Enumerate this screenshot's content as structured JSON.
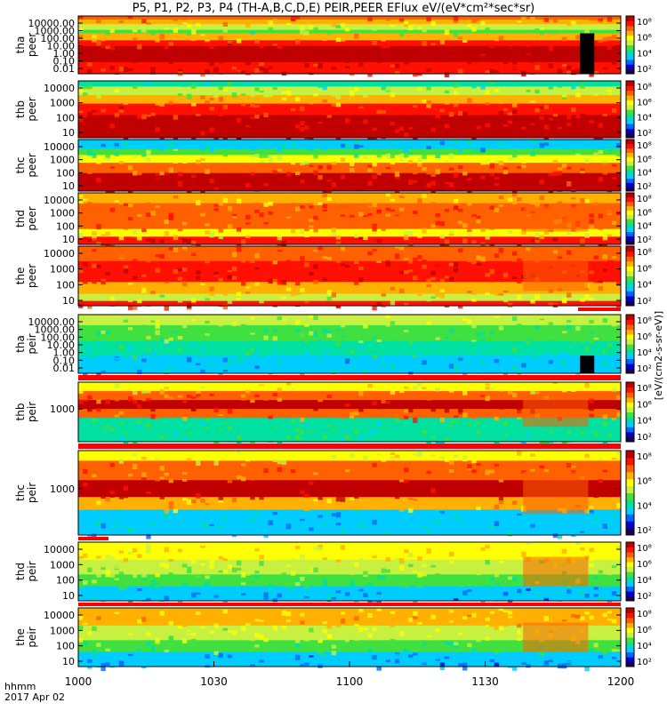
{
  "title": "P5, P1, P2, P3, P4 (TH-A,B,C,D,E) PEIR,PEER EFlux eV/(eV*cm²*sec*sr)",
  "colorbar_label": "[eV/(cm2-s-sr-eV)]",
  "x_axis": {
    "ticks": [
      "1000",
      "1030",
      "1100",
      "1130",
      "1200"
    ],
    "stack_label_line1": "hhmm",
    "stack_label_line2": "2017 Apr 02"
  },
  "colorbar_ticks": [
    "10²",
    "10⁴",
    "10⁶",
    "10⁸"
  ],
  "colors": {
    "ramp": [
      "#1a0050",
      "#0000d0",
      "#0066ff",
      "#00ccff",
      "#00e0a0",
      "#40e040",
      "#c8f040",
      "#ffff00",
      "#ffb000",
      "#ff6000",
      "#ff1000",
      "#c00000"
    ],
    "quality_bar": "#ff0000",
    "background": "#ffffff"
  },
  "chart_data": {
    "type": "heatmap",
    "time_range": [
      "1000",
      "1200"
    ],
    "colorscale": "log",
    "colorbar_range": [
      "10²",
      "10⁸"
    ],
    "panels": [
      {
        "probe": "tha",
        "species": "peer",
        "ylabel": [
          "tha",
          "peer"
        ],
        "yticks": [
          "10000.00",
          "1000.00",
          "100.00",
          "10.00",
          "1.00",
          "0.10",
          "0.01"
        ]
      },
      {
        "probe": "thb",
        "species": "peer",
        "ylabel": [
          "thb",
          "peer"
        ],
        "yticks": [
          "10000",
          "1000",
          "100",
          "10"
        ]
      },
      {
        "probe": "thc",
        "species": "peer",
        "ylabel": [
          "thc",
          "peer"
        ],
        "yticks": [
          "10000",
          "1000",
          "100",
          "10"
        ]
      },
      {
        "probe": "thd",
        "species": "peer",
        "ylabel": [
          "thd",
          "peer"
        ],
        "yticks": [
          "10000",
          "1000",
          "100",
          "10"
        ]
      },
      {
        "probe": "the",
        "species": "peer",
        "ylabel": [
          "the",
          "peer"
        ],
        "yticks": [
          "10000",
          "1000",
          "100",
          "10"
        ]
      },
      {
        "probe": "tha",
        "species": "peir",
        "ylabel": [
          "tha",
          "peir"
        ],
        "yticks": [
          "10000.00",
          "1000.00",
          "100.00",
          "10.00",
          "1.00",
          "0.10",
          "0.01"
        ]
      },
      {
        "probe": "thb",
        "species": "peir",
        "ylabel": [
          "thb",
          "peir"
        ],
        "yticks": [
          "1000"
        ]
      },
      {
        "probe": "thc",
        "species": "peir",
        "ylabel": [
          "thc",
          "peir"
        ],
        "yticks": [
          "1000"
        ]
      },
      {
        "probe": "thd",
        "species": "peir",
        "ylabel": [
          "thd",
          "peir"
        ],
        "yticks": [
          "10000",
          "1000",
          "100",
          "10"
        ]
      },
      {
        "probe": "the",
        "species": "peir",
        "ylabel": [
          "the",
          "peir"
        ],
        "yticks": [
          "10000",
          "1000",
          "100",
          "10"
        ]
      }
    ]
  }
}
